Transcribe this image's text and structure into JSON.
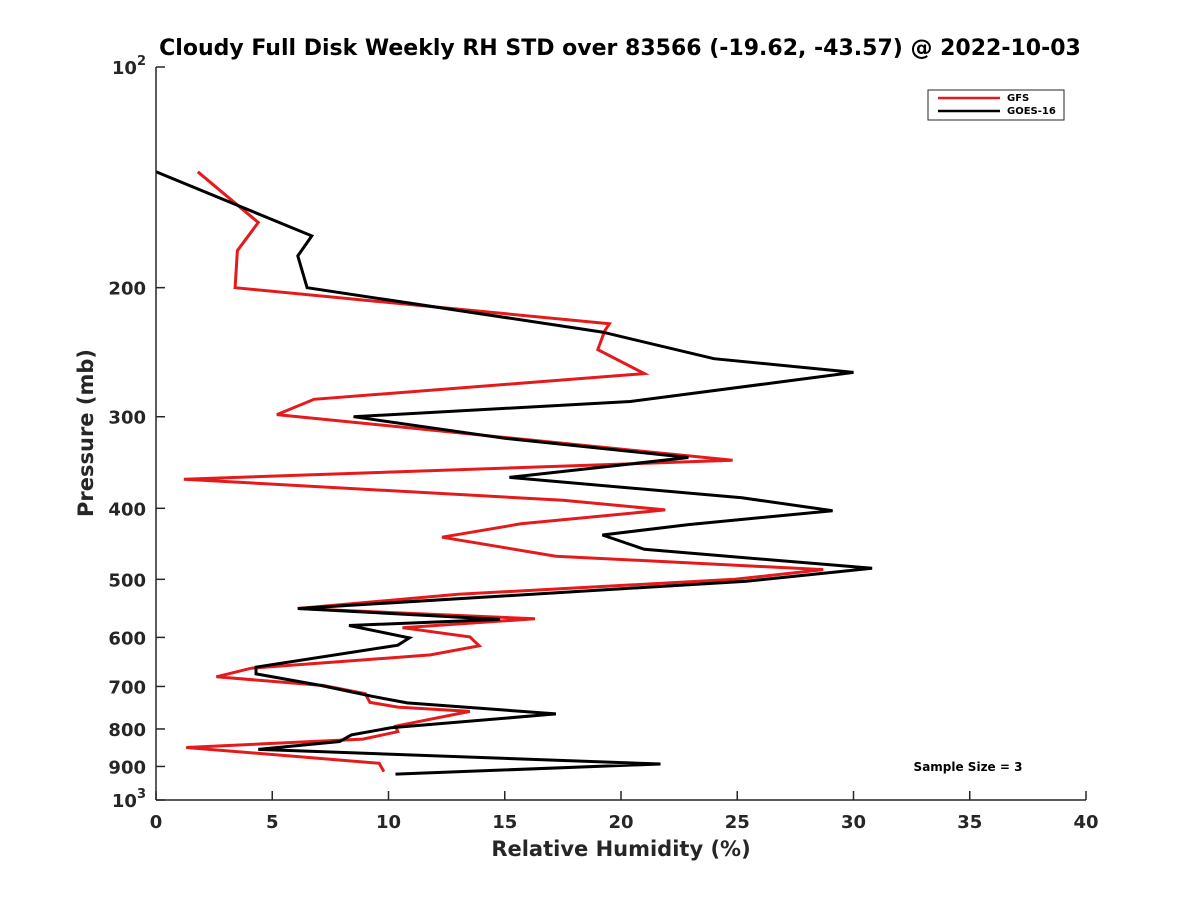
{
  "chart_data": {
    "type": "line",
    "title": "Cloudy Full Disk Weekly RH STD over 83566 (-19.62, -43.57) @ 2022-10-03",
    "xlabel": "Relative Humidity (%)",
    "ylabel": "Pressure (mb)",
    "xlim": [
      0,
      40
    ],
    "ylim": [
      100,
      1000
    ],
    "y_scale": "log",
    "y_reversed": true,
    "x_ticks": [
      "0",
      "5",
      "10",
      "15",
      "20",
      "25",
      "30",
      "35",
      "40"
    ],
    "y_ticks": [
      {
        "value": 100,
        "base": "10",
        "exp": "2"
      },
      {
        "value": 200,
        "label": "200"
      },
      {
        "value": 300,
        "label": "300"
      },
      {
        "value": 400,
        "label": "400"
      },
      {
        "value": 500,
        "label": "500"
      },
      {
        "value": 600,
        "label": "600"
      },
      {
        "value": 700,
        "label": "700"
      },
      {
        "value": 800,
        "label": "800"
      },
      {
        "value": 900,
        "label": "900"
      },
      {
        "value": 1000,
        "base": "10",
        "exp": "3"
      }
    ],
    "grid": false,
    "legend_position": "top-right",
    "annotation": "Sample Size = 3",
    "series": [
      {
        "name": "GFS",
        "color": "#e41a1c",
        "points": [
          [
            1.8,
            139
          ],
          [
            4.4,
            163
          ],
          [
            3.5,
            178
          ],
          [
            3.4,
            200
          ],
          [
            19.5,
            224
          ],
          [
            19.3,
            229
          ],
          [
            19.0,
            243
          ],
          [
            21.0,
            262
          ],
          [
            6.8,
            284
          ],
          [
            5.2,
            298
          ],
          [
            24.8,
            344
          ],
          [
            1.2,
            365
          ],
          [
            17.5,
            390
          ],
          [
            21.9,
            402
          ],
          [
            15.7,
            420
          ],
          [
            12.3,
            438
          ],
          [
            17.2,
            465
          ],
          [
            28.7,
            485
          ],
          [
            24.9,
            500
          ],
          [
            13.0,
            524
          ],
          [
            6.1,
            548
          ],
          [
            16.3,
            566
          ],
          [
            10.6,
            582
          ],
          [
            13.5,
            599
          ],
          [
            13.9,
            616
          ],
          [
            11.8,
            634
          ],
          [
            4.1,
            661
          ],
          [
            2.6,
            679
          ],
          [
            7.2,
            698
          ],
          [
            9.0,
            716
          ],
          [
            9.2,
            736
          ],
          [
            10.4,
            747
          ],
          [
            13.5,
            757
          ],
          [
            10.3,
            793
          ],
          [
            10.4,
            807
          ],
          [
            8.9,
            826
          ],
          [
            1.3,
            848
          ],
          [
            9.6,
            891
          ],
          [
            9.8,
            915
          ]
        ]
      },
      {
        "name": "GOES-16",
        "color": "#000000",
        "points": [
          [
            0.0,
            139
          ],
          [
            6.7,
            170
          ],
          [
            6.1,
            181
          ],
          [
            6.5,
            200
          ],
          [
            19.2,
            230
          ],
          [
            24.0,
            250
          ],
          [
            30.0,
            261
          ],
          [
            20.4,
            286
          ],
          [
            8.5,
            300
          ],
          [
            15.0,
            321
          ],
          [
            22.9,
            341
          ],
          [
            15.2,
            363
          ],
          [
            25.2,
            387
          ],
          [
            29.1,
            403
          ],
          [
            22.9,
            421
          ],
          [
            19.2,
            435
          ],
          [
            21.0,
            455
          ],
          [
            30.8,
            483
          ],
          [
            25.4,
            503
          ],
          [
            6.1,
            548
          ],
          [
            14.8,
            567
          ],
          [
            8.3,
            578
          ],
          [
            10.9,
            601
          ],
          [
            10.4,
            615
          ],
          [
            4.3,
            659
          ],
          [
            4.3,
            673
          ],
          [
            7.1,
            698
          ],
          [
            9.3,
            722
          ],
          [
            10.8,
            737
          ],
          [
            17.2,
            763
          ],
          [
            10.1,
            797
          ],
          [
            8.4,
            815
          ],
          [
            7.9,
            832
          ],
          [
            4.4,
            853
          ],
          [
            21.7,
            893
          ],
          [
            10.3,
            922
          ]
        ]
      }
    ]
  }
}
